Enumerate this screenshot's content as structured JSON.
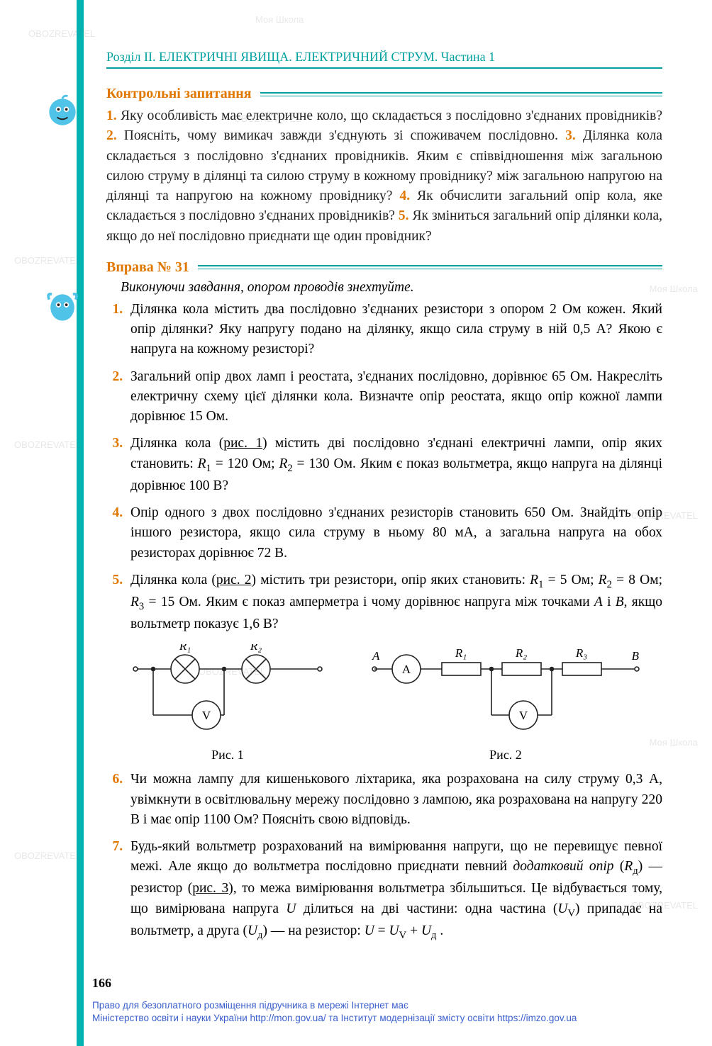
{
  "chapter": "Розділ II. ЕЛЕКТРИЧНІ ЯВИЩА. ЕЛЕКТРИЧНИЙ СТРУМ. Частина 1",
  "section_control": "Контрольні запитання",
  "control_questions": {
    "items": [
      {
        "n": "1.",
        "t": "Яку особливість має електричне коло, що складається з послідовно з'єднаних провідників?"
      },
      {
        "n": "2.",
        "t": "Поясніть, чому вимикач завжди з'єднують зі споживачем послідовно."
      },
      {
        "n": "3.",
        "t": "Ділянка кола складається з послідовно з'єднаних провідників. Яким є співвідношення між загальною силою струму в ділянці та силою струму в кожному провіднику? між загальною напругою на ділянці та напругою на кожному провіднику?"
      },
      {
        "n": "4.",
        "t": "Як обчислити загальний опір кола, яке складається з послідовно з'єднаних провідників?"
      },
      {
        "n": "5.",
        "t": "Як зміниться загальний опір ділянки кола, якщо до неї послідовно приєднати ще один провідник?"
      }
    ]
  },
  "section_exercise": "Вправа № 31",
  "instruction": "Виконуючи завдання, опором проводів знехтуйте.",
  "exercises": [
    "Ділянка кола містить два послідовно з'єднаних резистори з опором 2 Ом кожен. Який опір ділянки? Яку напругу подано на ділянку, якщо сила струму в ній 0,5 А? Якою є напруга на кожному резисторі?",
    "Загальний опір двох ламп і реостата, з'єднаних послідовно, дорівнює 65 Ом. Накресліть електричну схему цієї ділянки кола. Визначте опір реостата, якщо опір кожної лампи дорівнює 15 Ом.",
    "__HTML__Ділянка кола (<span class='ulink'>рис. 1</span>) містить дві послідовно з'єднані електричні лампи, опір яких становить: <i>R</i><span class='sub'>1</span> = 120 Ом; <i>R</i><span class='sub'>2</span> = 130 Ом. Яким є показ вольтметра, якщо напруга на ділянці дорівнює 100 В?",
    "Опір одного з двох послідовно з'єднаних резисторів становить 650 Ом. Знайдіть опір іншого резистора, якщо сила струму в ньому 80 мА, а загальна напруга на обох резисторах дорівнює 72 В.",
    "__HTML__Ділянка кола (<span class='ulink'>рис. 2</span>) містить три резистори, опір яких становить: <i>R</i><span class='sub'>1</span> = 5 Ом; <i>R</i><span class='sub'>2</span> = 8 Ом; <i>R</i><span class='sub'>3</span> = 15 Ом. Яким є показ амперметра і чому дорівнює напруга між точками <i>A</i> і <i>B</i>, якщо вольтметр показує 1,6 В?",
    "Чи можна лампу для кишенькового ліхтарика, яка розрахована на силу струму 0,3 А, увімкнути в освітлювальну мережу послідовно з лампою, яка розрахована на напругу 220 В і має опір 1100 Ом? Поясніть свою відповідь.",
    "__HTML__Будь-який вольтметр розрахований на вимірювання напруги, що не перевищує певної межі. Але якщо до вольтметра послідовно приєднати певний <i>додатковий опір</i> (<i>R</i><span class='sub'>д</span>) — резистор (<span class='ulink'>рис. 3</span>), то межа вимірювання вольтметра збільшиться. Це відбувається тому, що вимірювана напруга <i>U</i> ділиться на дві частини: одна частина (<i>U</i><span class='sub'>V</span>) припадає на вольтметр, а друга (<i>U</i><span class='sub'>д</span>) — на резистор: <i>U</i> = <i>U</i><span class='sub'>V</span> + <i>U</i><span class='sub'>д</span> ."
  ],
  "figures": {
    "fig1": {
      "caption": "Рис. 1",
      "labels": {
        "R1": "R₁",
        "R2": "R₂",
        "V": "V"
      },
      "colors": {
        "stroke": "#222",
        "text": "#222"
      }
    },
    "fig2": {
      "caption": "Рис. 2",
      "labels": {
        "A_pt": "A",
        "B_pt": "B",
        "A_meter": "A",
        "V": "V",
        "R1": "R₁",
        "R2": "R₂",
        "R3": "R₃"
      },
      "colors": {
        "stroke": "#222",
        "text": "#222"
      }
    }
  },
  "page_number": "166",
  "footer_line1": "Право для безоплатного розміщення підручника в мережі Інтернет має",
  "footer_line2": "Міністерство освіти і науки України http://mon.gov.ua/ та Інститут модернізації змісту освіти https://imzo.gov.ua",
  "watermark_texts": [
    "Моя Школа",
    "OBOZREVATEL"
  ],
  "colors": {
    "accent_teal": "#00a0a0",
    "accent_orange": "#e07800",
    "left_bar": "#00b3b3",
    "footer_link": "#3a5fcc"
  }
}
